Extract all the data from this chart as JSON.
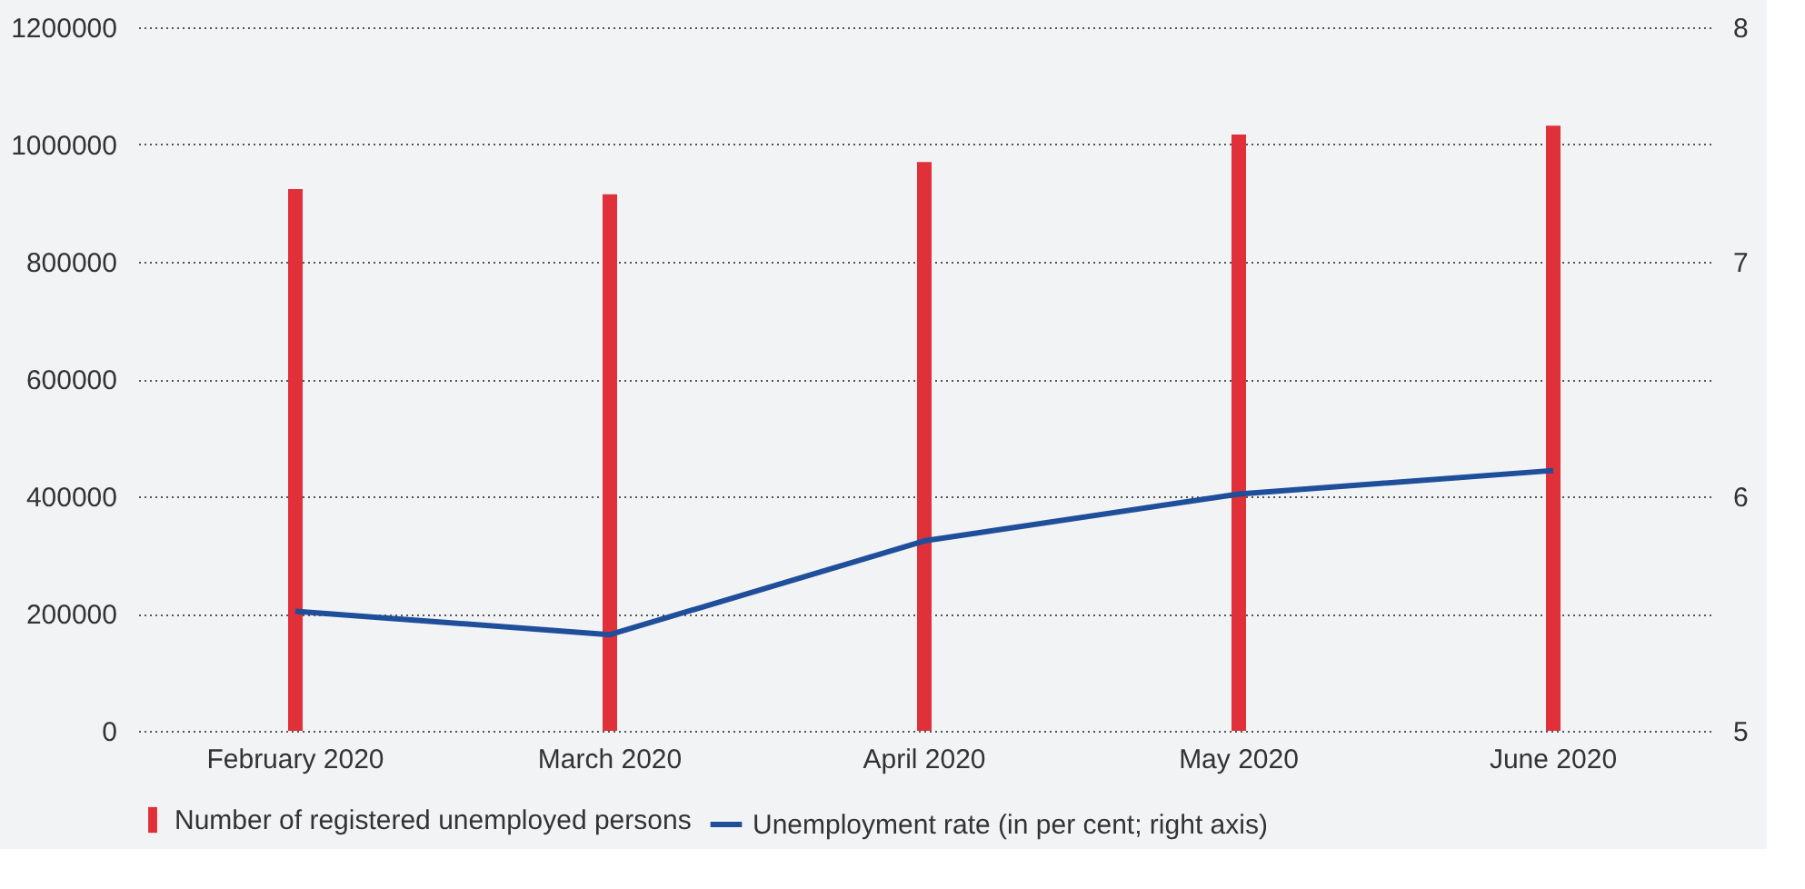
{
  "chart_data": {
    "type": "bar",
    "categories": [
      "February 2020",
      "March 2020",
      "April 2020",
      "May 2020",
      "June 2020"
    ],
    "series": [
      {
        "name": "Number of registered unemployed persons",
        "color": "#e0303a",
        "values": [
          924000,
          915000,
          970000,
          1017000,
          1032000
        ]
      },
      {
        "name": "Unemployment rate (in per cent; right axis)",
        "type": "line",
        "axis": "y2",
        "color": "#1f4e9a",
        "values": [
          5.51,
          5.41,
          5.81,
          6.01,
          6.11
        ]
      }
    ],
    "ylim": [
      0,
      1200000
    ],
    "yticks": [
      0,
      200000,
      400000,
      600000,
      800000,
      1000000,
      1200000
    ],
    "y2lim": [
      5,
      8
    ],
    "y2ticks": [
      5,
      6,
      7,
      8
    ],
    "grid": "y",
    "legend": "bottom"
  }
}
